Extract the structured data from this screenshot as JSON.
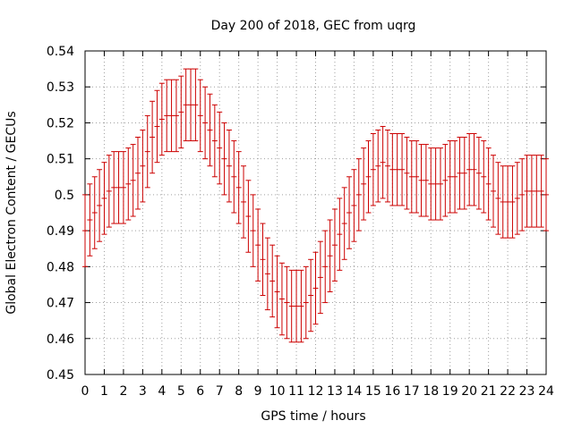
{
  "chart_data": {
    "type": "scatter",
    "title": "Day 200 of 2018, GEC from uqrg",
    "xlabel": "GPS time / hours",
    "ylabel": "Global Electron Content / GECUs",
    "xlim": [
      0,
      24
    ],
    "ylim": [
      0.45,
      0.54
    ],
    "xticks": [
      "0",
      "1",
      "2",
      "3",
      "4",
      "5",
      "6",
      "7",
      "8",
      "9",
      "10",
      "11",
      "12",
      "13",
      "14",
      "15",
      "16",
      "17",
      "18",
      "19",
      "20",
      "21",
      "22",
      "23",
      "24"
    ],
    "yticks": [
      "0.45",
      "0.46",
      "0.47",
      "0.48",
      "0.49",
      "0.5",
      "0.51",
      "0.52",
      "0.53",
      "0.54"
    ],
    "grid": true,
    "error_bars": true,
    "series": [
      {
        "color": "#cc0000",
        "x": [
          0,
          0.25,
          0.5,
          0.75,
          1,
          1.25,
          1.5,
          1.75,
          2,
          2.25,
          2.5,
          2.75,
          3,
          3.25,
          3.5,
          3.75,
          4,
          4.25,
          4.5,
          4.75,
          5,
          5.25,
          5.5,
          5.75,
          6,
          6.25,
          6.5,
          6.75,
          7,
          7.25,
          7.5,
          7.75,
          8,
          8.25,
          8.5,
          8.75,
          9,
          9.25,
          9.5,
          9.75,
          10,
          10.25,
          10.5,
          10.75,
          11,
          11.25,
          11.5,
          11.75,
          12,
          12.25,
          12.5,
          12.75,
          13,
          13.25,
          13.5,
          13.75,
          14,
          14.25,
          14.5,
          14.75,
          15,
          15.25,
          15.5,
          15.75,
          16,
          16.25,
          16.5,
          16.75,
          17,
          17.25,
          17.5,
          17.75,
          18,
          18.25,
          18.5,
          18.75,
          19,
          19.25,
          19.5,
          19.75,
          20,
          20.25,
          20.5,
          20.75,
          21,
          21.25,
          21.5,
          21.75,
          22,
          22.25,
          22.5,
          22.75,
          23,
          23.25,
          23.5,
          23.75,
          24
        ],
        "y": [
          0.49,
          0.493,
          0.495,
          0.497,
          0.499,
          0.501,
          0.502,
          0.502,
          0.502,
          0.503,
          0.504,
          0.506,
          0.508,
          0.512,
          0.516,
          0.519,
          0.521,
          0.522,
          0.522,
          0.522,
          0.523,
          0.525,
          0.525,
          0.525,
          0.522,
          0.52,
          0.518,
          0.515,
          0.513,
          0.51,
          0.508,
          0.505,
          0.502,
          0.498,
          0.494,
          0.49,
          0.486,
          0.482,
          0.478,
          0.476,
          0.473,
          0.471,
          0.47,
          0.469,
          0.469,
          0.469,
          0.47,
          0.472,
          0.474,
          0.477,
          0.48,
          0.483,
          0.486,
          0.489,
          0.492,
          0.495,
          0.497,
          0.5,
          0.503,
          0.505,
          0.507,
          0.508,
          0.509,
          0.508,
          0.507,
          0.507,
          0.507,
          0.506,
          0.505,
          0.505,
          0.504,
          0.504,
          0.503,
          0.503,
          0.503,
          0.504,
          0.505,
          0.505,
          0.506,
          0.506,
          0.507,
          0.507,
          0.506,
          0.505,
          0.503,
          0.501,
          0.499,
          0.498,
          0.498,
          0.498,
          0.499,
          0.5,
          0.501,
          0.501,
          0.501,
          0.501,
          0.5
        ],
        "err": [
          0.01,
          0.01,
          0.01,
          0.01,
          0.01,
          0.01,
          0.01,
          0.01,
          0.01,
          0.01,
          0.01,
          0.01,
          0.01,
          0.01,
          0.01,
          0.01,
          0.01,
          0.01,
          0.01,
          0.01,
          0.01,
          0.01,
          0.01,
          0.01,
          0.01,
          0.01,
          0.01,
          0.01,
          0.01,
          0.01,
          0.01,
          0.01,
          0.01,
          0.01,
          0.01,
          0.01,
          0.01,
          0.01,
          0.01,
          0.01,
          0.01,
          0.01,
          0.01,
          0.01,
          0.01,
          0.01,
          0.01,
          0.01,
          0.01,
          0.01,
          0.01,
          0.01,
          0.01,
          0.01,
          0.01,
          0.01,
          0.01,
          0.01,
          0.01,
          0.01,
          0.01,
          0.01,
          0.01,
          0.01,
          0.01,
          0.01,
          0.01,
          0.01,
          0.01,
          0.01,
          0.01,
          0.01,
          0.01,
          0.01,
          0.01,
          0.01,
          0.01,
          0.01,
          0.01,
          0.01,
          0.01,
          0.01,
          0.01,
          0.01,
          0.01,
          0.01,
          0.01,
          0.01,
          0.01,
          0.01,
          0.01,
          0.01,
          0.01,
          0.01,
          0.01,
          0.01,
          0.01
        ]
      }
    ]
  }
}
